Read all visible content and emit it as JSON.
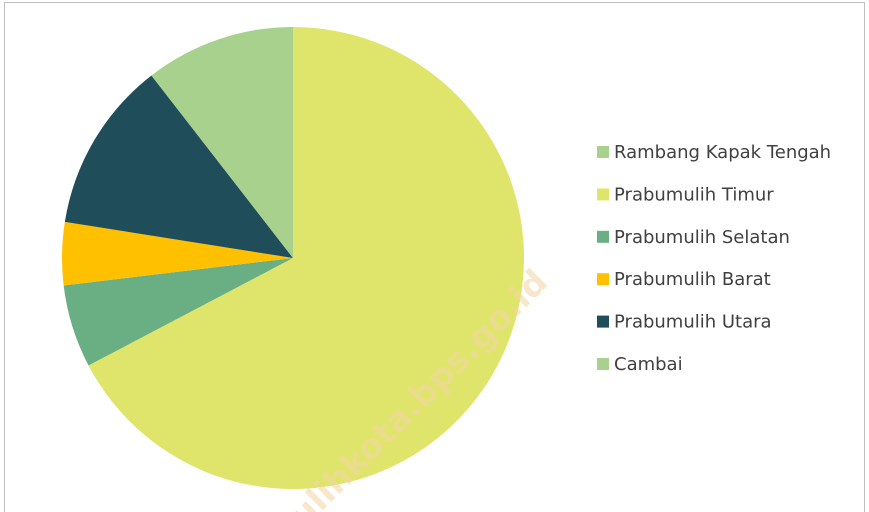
{
  "chart_data": {
    "type": "pie",
    "categories": [
      "Rambang Kapak Tengah",
      "Prabumulih Timur",
      "Prabumulih Selatan",
      "Prabumulih Barat",
      "Prabumulih Utara",
      "Cambai"
    ],
    "values": [
      0,
      67.3,
      5.8,
      4.4,
      12.0,
      10.5
    ],
    "colors": [
      "#a9d18e",
      "#dfe46a",
      "#6aaf84",
      "#ffc000",
      "#1f4e5a",
      "#a9d18e"
    ],
    "legend": "right",
    "watermark": "ulihkota.bps.go.id"
  }
}
